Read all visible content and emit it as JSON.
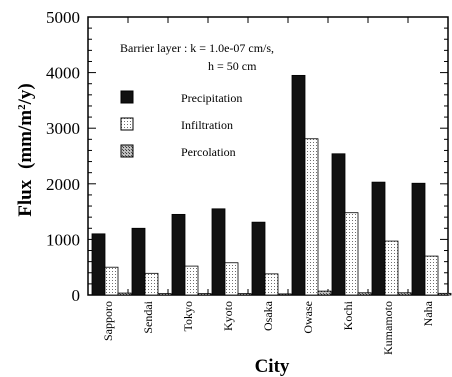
{
  "chart_data": {
    "type": "bar",
    "xlabel": "City",
    "ylabel": "Flux",
    "ylabel_unit": "(mm/m",
    "ylabel_unit_sup": "2",
    "ylabel_unit_end": "/y)",
    "ylim": [
      0,
      5000
    ],
    "yticks": [
      0,
      1000,
      2000,
      3000,
      4000,
      5000
    ],
    "categories": [
      "Sapporo",
      "Sendai",
      "Tokyo",
      "Kyoto",
      "Osaka",
      "Owase",
      "Kochi",
      "Kumamoto",
      "Naha"
    ],
    "series": [
      {
        "name": "Precipitation",
        "values": [
          1100,
          1200,
          1450,
          1550,
          1310,
          3950,
          2540,
          2030,
          2010
        ],
        "color": "#111111"
      },
      {
        "name": "Infiltration",
        "values": [
          500,
          390,
          520,
          580,
          380,
          2810,
          1480,
          970,
          700
        ],
        "color": "#e6e6e6"
      },
      {
        "name": "Percolation",
        "values": [
          35,
          25,
          25,
          25,
          20,
          70,
          40,
          40,
          30
        ],
        "color": "#9a9a9a"
      }
    ],
    "annotation_line1": "Barrier layer : k = 1.0e-07 cm/s,",
    "annotation_line2": "h = 50 cm",
    "legend_position": "upper-left"
  }
}
